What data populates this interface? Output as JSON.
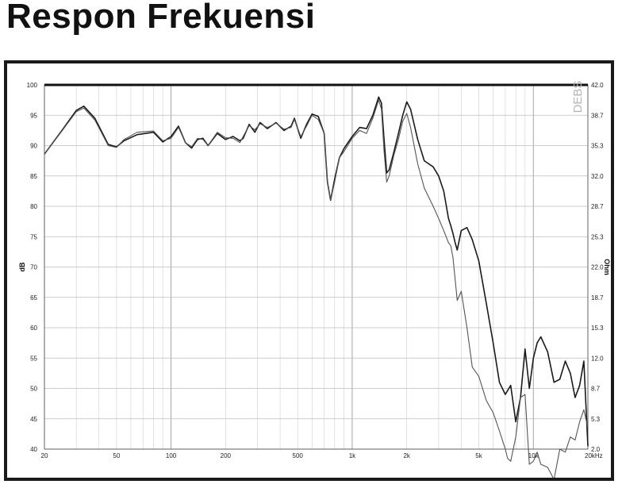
{
  "title": "Respon Frekuensi",
  "chart_data": {
    "type": "line",
    "xscale": "log",
    "xlim": [
      20,
      20000
    ],
    "ylim": [
      40,
      100
    ],
    "ylim_right": [
      2.0,
      42.0
    ],
    "ylabel": "dB",
    "ylabel_right": "Ohm",
    "watermark": "DEBS",
    "grid": true,
    "x_tick_labels": [
      {
        "v": 20,
        "t": "20"
      },
      {
        "v": 50,
        "t": "50"
      },
      {
        "v": 100,
        "t": "100"
      },
      {
        "v": 200,
        "t": "200"
      },
      {
        "v": 500,
        "t": "500"
      },
      {
        "v": 1000,
        "t": "1k"
      },
      {
        "v": 2000,
        "t": "2k"
      },
      {
        "v": 5000,
        "t": "5k"
      },
      {
        "v": 10000,
        "t": "10k"
      },
      {
        "v": 20000,
        "t": "20kHz"
      }
    ],
    "y_tick_labels": [
      "100",
      "95",
      "90",
      "85",
      "80",
      "75",
      "70",
      "65",
      "60",
      "55",
      "50",
      "45",
      "40"
    ],
    "y_right_tick_labels": [
      "42.0",
      "38.7",
      "35.3",
      "32.0",
      "28.7",
      "25.3",
      "22.0",
      "18.7",
      "15.3",
      "12.0",
      "8.7",
      "5.3",
      "2.0"
    ],
    "series": [
      {
        "color": "#1a1a1a",
        "x": [
          20,
          25,
          30,
          33,
          38,
          45,
          50,
          55,
          65,
          80,
          90,
          100,
          110,
          120,
          130,
          140,
          150,
          160,
          180,
          200,
          220,
          240,
          250,
          270,
          290,
          310,
          340,
          380,
          420,
          460,
          480,
          520,
          560,
          600,
          650,
          700,
          730,
          760,
          800,
          850,
          900,
          1000,
          1100,
          1200,
          1300,
          1400,
          1450,
          1500,
          1550,
          1600,
          1700,
          1800,
          1900,
          2000,
          2100,
          2300,
          2500,
          2800,
          3000,
          3200,
          3400,
          3500,
          3600,
          3700,
          3800,
          4000,
          4300,
          4600,
          5000,
          5500,
          6000,
          6500,
          7000,
          7500,
          8000,
          8500,
          9000,
          9500,
          10000,
          10500,
          11000,
          12000,
          13000,
          14000,
          15000,
          16000,
          17000,
          18000,
          19000,
          20000
        ],
        "y": [
          88.6,
          92.5,
          95.8,
          96.5,
          94.5,
          90.2,
          89.8,
          90.8,
          91.8,
          92.2,
          90.6,
          91.5,
          93.2,
          90.5,
          89.6,
          91.0,
          91.2,
          90.0,
          92.0,
          91.0,
          91.5,
          90.8,
          91.2,
          93.5,
          92.2,
          93.8,
          92.8,
          93.8,
          92.5,
          93.2,
          94.5,
          91.2,
          93.5,
          95.2,
          94.8,
          92.0,
          84.0,
          81.0,
          84.5,
          88.0,
          89.5,
          91.5,
          93.0,
          92.8,
          95.0,
          98.0,
          97.0,
          91.0,
          85.5,
          86.0,
          89.0,
          92.0,
          95.0,
          97.2,
          96.0,
          91.0,
          87.5,
          86.5,
          85.0,
          82.5,
          78.0,
          76.8,
          75.5,
          74.0,
          72.8,
          76.0,
          76.5,
          74.5,
          71.0,
          64.0,
          57.5,
          51.0,
          49.0,
          50.5,
          44.5,
          48.5,
          56.5,
          50.0,
          55.0,
          57.5,
          58.5,
          56.0,
          51.0,
          51.5,
          54.5,
          52.5,
          48.5,
          50.5,
          54.5,
          40.5
        ]
      },
      {
        "color": "#555555",
        "x": [
          20,
          25,
          30,
          33,
          38,
          45,
          50,
          55,
          65,
          80,
          90,
          100,
          110,
          120,
          130,
          140,
          150,
          160,
          180,
          200,
          220,
          240,
          250,
          270,
          290,
          310,
          340,
          380,
          420,
          460,
          480,
          520,
          560,
          600,
          650,
          700,
          730,
          760,
          800,
          850,
          900,
          1000,
          1100,
          1200,
          1300,
          1400,
          1450,
          1500,
          1550,
          1600,
          1700,
          1800,
          1900,
          2000,
          2100,
          2300,
          2500,
          2800,
          3000,
          3200,
          3400,
          3500,
          3600,
          3800,
          4000,
          4300,
          4600,
          5000,
          5500,
          6000,
          6500,
          7000,
          7200,
          7500,
          8000,
          8500,
          9000,
          9500,
          10000,
          10500,
          11000,
          12000,
          13000,
          14000,
          15000,
          16000,
          17000,
          18000,
          19000,
          20000
        ],
        "y": [
          88.6,
          92.4,
          95.6,
          96.2,
          94.2,
          90.0,
          89.7,
          91.0,
          92.2,
          92.4,
          90.8,
          91.2,
          93.0,
          90.5,
          89.8,
          91.2,
          91.0,
          90.0,
          92.2,
          91.3,
          91.2,
          90.5,
          91.5,
          93.3,
          92.6,
          93.6,
          93.0,
          93.7,
          92.7,
          93.0,
          94.3,
          91.5,
          93.2,
          95.0,
          94.3,
          92.0,
          84.0,
          81.0,
          84.0,
          88.0,
          89.0,
          91.2,
          92.5,
          92.0,
          94.5,
          97.5,
          96.0,
          89.0,
          84.0,
          85.0,
          88.5,
          91.0,
          94.0,
          95.3,
          93.0,
          87.0,
          83.0,
          80.0,
          78.0,
          76.0,
          74.0,
          73.5,
          71.5,
          64.5,
          66.0,
          60.0,
          53.5,
          52.0,
          48.0,
          46.0,
          43.0,
          40.0,
          38.5,
          38.0,
          42.0,
          48.5,
          49.0,
          37.5,
          38.0,
          39.5,
          37.5,
          37.0,
          35.0,
          40.0,
          39.5,
          42.0,
          41.5,
          44.5,
          46.5,
          43.5
        ]
      }
    ]
  }
}
